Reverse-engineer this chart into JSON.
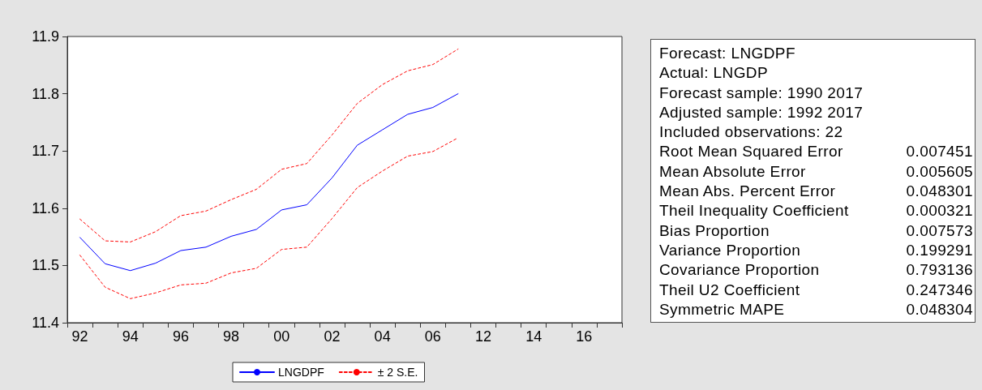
{
  "chart_data": [
    {
      "type": "line",
      "categories": [
        "92",
        null,
        "94",
        null,
        "96",
        null,
        "98",
        null,
        "00",
        null,
        "02",
        null,
        "04",
        null,
        "06",
        null,
        "12",
        null,
        "14",
        null,
        "16",
        null
      ],
      "series": [
        {
          "name": "LNGDPF",
          "color": "#0000ff",
          "line_style": "solid",
          "values": [
            11.549,
            11.503,
            11.491,
            11.504,
            11.526,
            11.532,
            11.551,
            11.563,
            11.597,
            11.606,
            11.653,
            11.71,
            11.737,
            11.764,
            11.776,
            11.8,
            null,
            null,
            null,
            null,
            null,
            null
          ]
        },
        {
          "name": "± 2 S.E.",
          "color": "#ff0000",
          "line_style": "dashed",
          "values": [
            11.581,
            11.543,
            11.541,
            11.559,
            11.587,
            11.595,
            11.615,
            11.633,
            11.668,
            11.678,
            11.728,
            11.783,
            11.816,
            11.84,
            11.851,
            11.878,
            null,
            null,
            null,
            null,
            null,
            null
          ]
        },
        {
          "color": "#ff0000",
          "line_style": "dashed",
          "values": [
            11.518,
            11.462,
            11.442,
            11.452,
            11.466,
            11.469,
            11.487,
            11.495,
            11.528,
            11.532,
            11.582,
            11.636,
            11.665,
            11.691,
            11.699,
            11.723,
            null,
            null,
            null,
            null,
            null,
            null
          ]
        }
      ],
      "ylim": [
        11.4,
        11.9
      ],
      "yticks": [
        11.4,
        11.5,
        11.6,
        11.7,
        11.8,
        11.9
      ],
      "grid": false,
      "marker": "none",
      "legend": "bottom"
    },
    {
      "type": "other",
      "categories": [
        "Forecast: LNGDPF",
        "Actual: LNGDP",
        "Forecast sample: 1990 2017",
        "Adjusted sample: 1992 2017",
        "Included observations: 22",
        "Root Mean Squared Error",
        "Mean Absolute Error",
        "Mean Abs. Percent Error",
        "Theil Inequality Coefficient",
        "Bias Proportion",
        "Variance Proportion",
        "Covariance Proportion",
        "Theil U2 Coefficient",
        "Symmetric MAPE"
      ],
      "values": [
        null,
        null,
        null,
        null,
        null,
        0.007451,
        0.005605,
        0.048301,
        0.000321,
        0.007573,
        0.199291,
        0.793136,
        0.247346,
        0.048304
      ],
      "data_labels": true
    }
  ]
}
